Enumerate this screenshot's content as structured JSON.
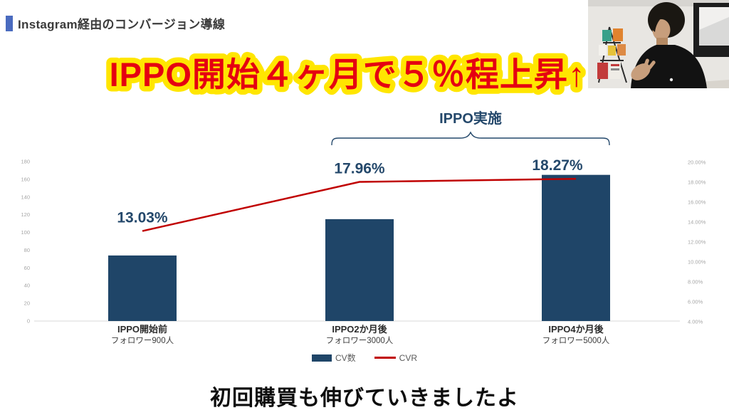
{
  "page": {
    "title": "Instagram経由のコンバージョン導線",
    "headline": "IPPO開始４ヶ月で５％程上昇↑",
    "caption": "初回購買も伸びていきましたよ"
  },
  "colors": {
    "headline-red": "#e50011",
    "headline-yellow": "#ffe600",
    "label-navy": "#24486b",
    "axis-gray": "#a6a6a6",
    "legend-gray": "#595959",
    "title-marker-blue": "#4a6bbf",
    "title-gray": "#3b3b3b",
    "caption-black": "#0d0d0d"
  },
  "chart_data": {
    "type": "bar",
    "subtype": "combo-bar-line",
    "title": "",
    "annotation": "IPPO実施",
    "annotation_span_categories": [
      "IPPO2か月後",
      "IPPO4か月後"
    ],
    "categories": [
      "IPPO開始前",
      "IPPO2か月後",
      "IPPO4か月後"
    ],
    "category_sublabels": [
      "フォロワー900人",
      "フォロワー3000人",
      "フォロワー5000人"
    ],
    "series": [
      {
        "name": "CV数",
        "type": "bar",
        "axis": "left",
        "color": "#1f4568",
        "values": [
          74,
          115,
          165
        ]
      },
      {
        "name": "CVR",
        "type": "line",
        "axis": "right",
        "color": "#c00000",
        "values": [
          13.03,
          17.96,
          18.27
        ],
        "point_labels": [
          "13.03%",
          "17.96%",
          "18.27%"
        ]
      }
    ],
    "left_axis": {
      "min": 0,
      "max": 180,
      "step": 20,
      "ticks": [
        "180",
        "160",
        "140",
        "120",
        "100",
        "80",
        "60",
        "40",
        "20",
        "0"
      ]
    },
    "right_axis": {
      "min": 4,
      "max": 20,
      "step": 2,
      "ticks": [
        "20.00%",
        "18.00%",
        "16.00%",
        "14.00%",
        "12.00%",
        "10.00%",
        "8.00%",
        "6.00%",
        "4.00%"
      ]
    },
    "legend": [
      "CV数",
      "CVR"
    ],
    "legend_position": "bottom",
    "grid": false
  }
}
